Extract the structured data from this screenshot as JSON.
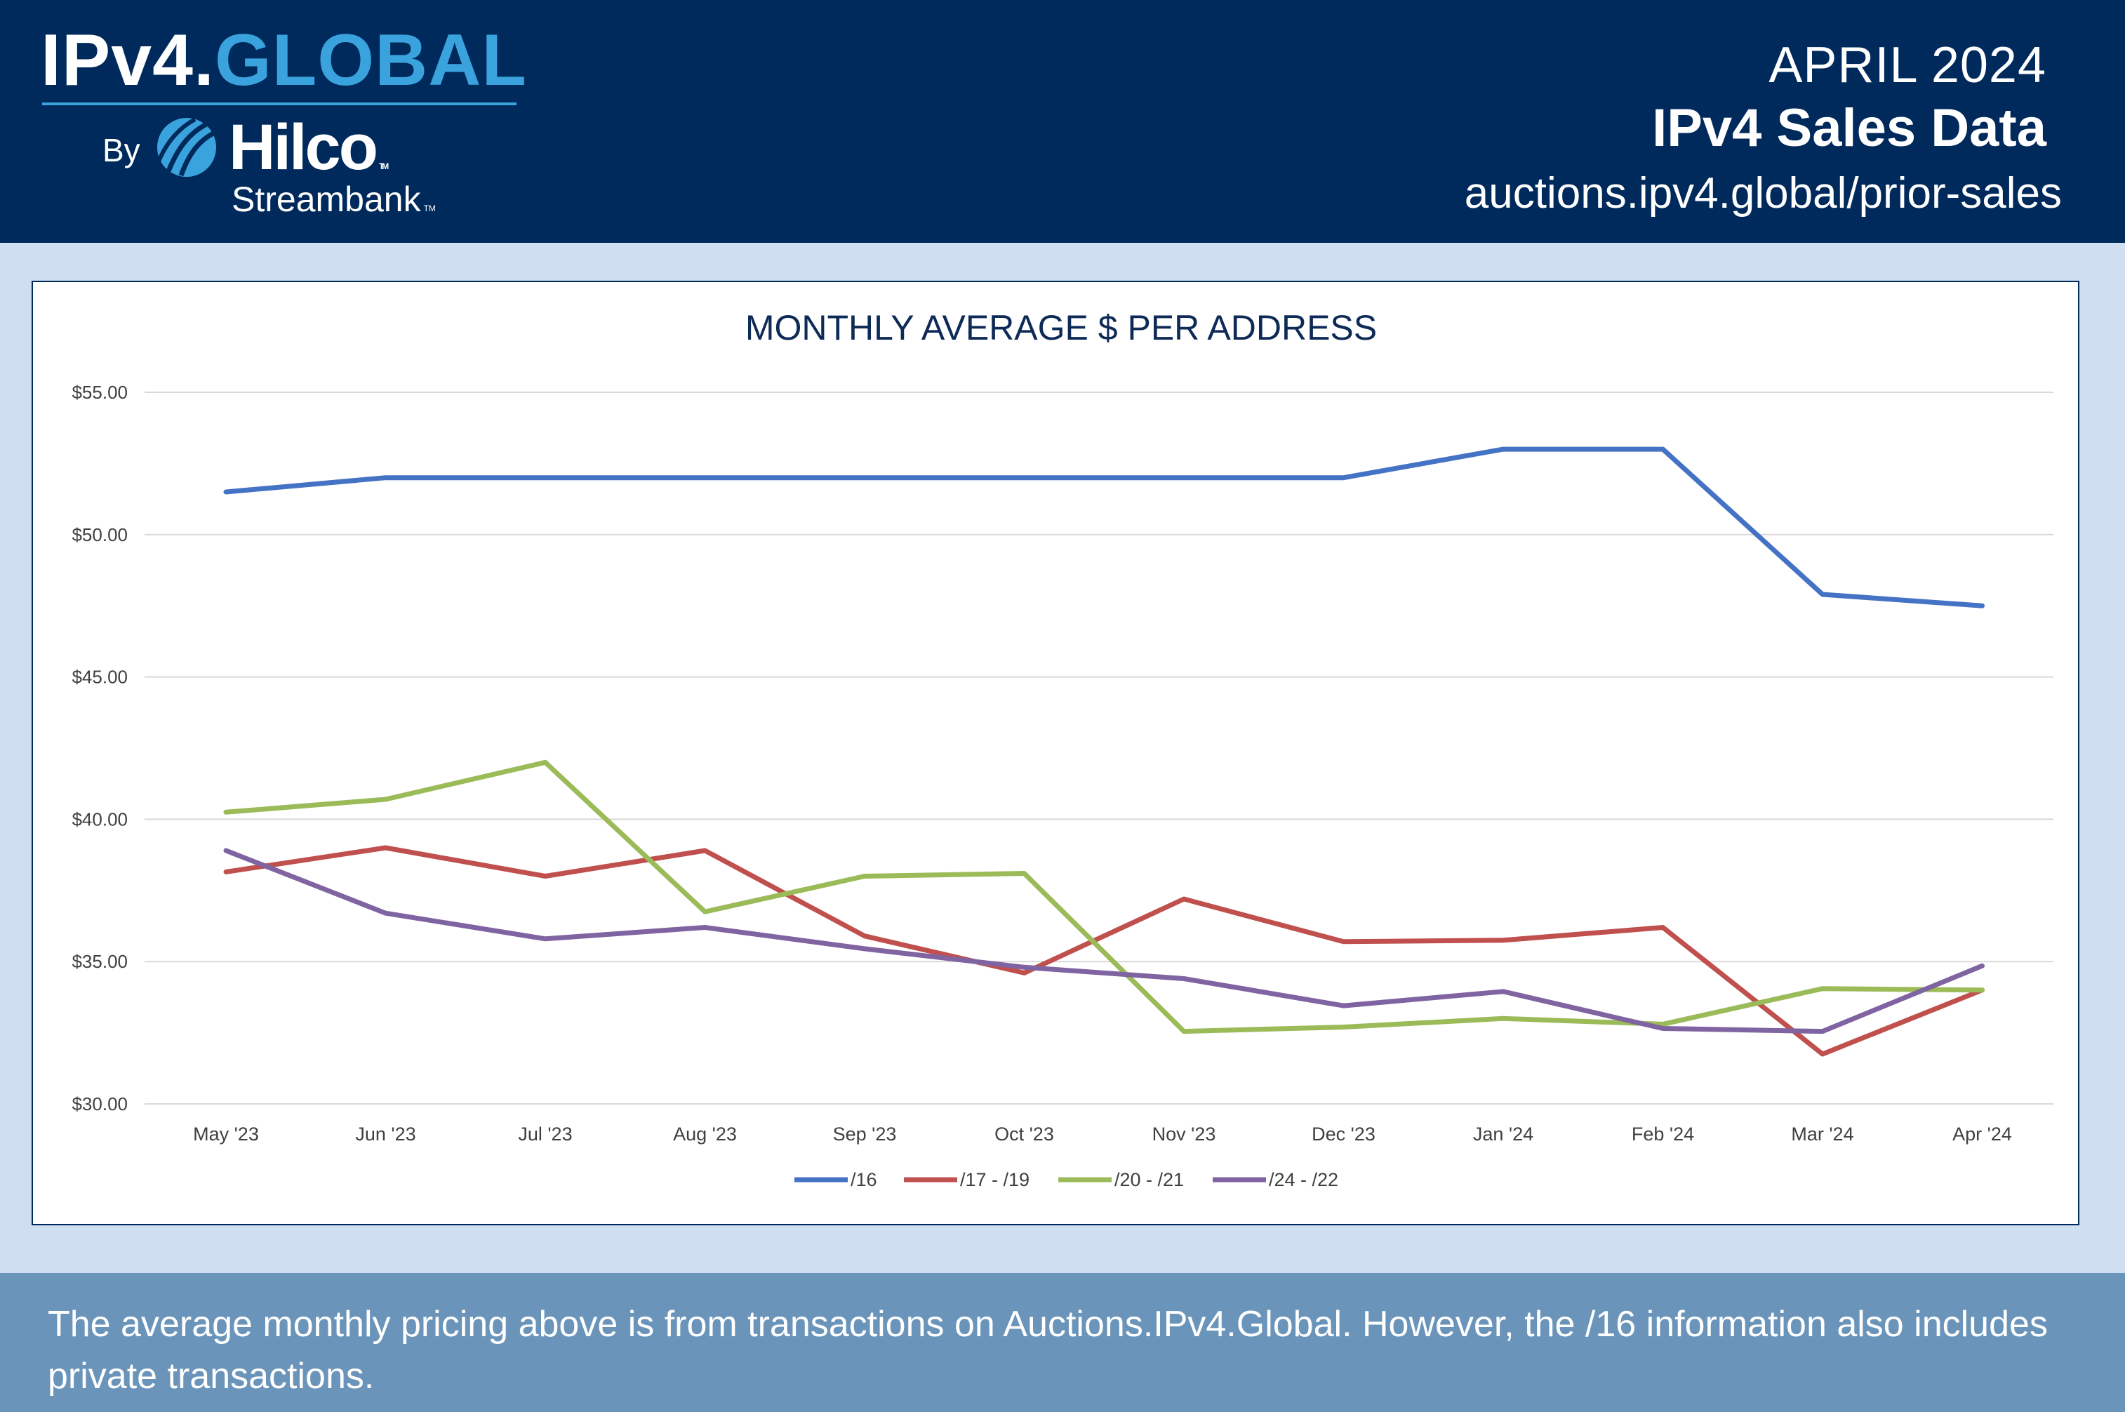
{
  "header": {
    "brand_part1": "IPv4.",
    "brand_part2": "GLOBAL",
    "by_label": "By",
    "hilco": "Hilco",
    "streambank": "Streambank",
    "tm": "TM",
    "month": "APRIL 2024",
    "title": "IPv4 Sales Data",
    "url": "auctions.ipv4.global/prior-sales"
  },
  "colors": {
    "header_bg": "#002a5c",
    "brand_accent": "#3aa3de",
    "page_bg": "#cfdef0",
    "footer_bg": "#6a94b9"
  },
  "chart_data": {
    "type": "line",
    "title": "MONTHLY AVERAGE $ PER ADDRESS",
    "xlabel": "",
    "ylabel": "",
    "ylim": [
      30,
      55
    ],
    "y_ticks": [
      30,
      35,
      40,
      45,
      50,
      55
    ],
    "y_tick_labels": [
      "$30.00",
      "$35.00",
      "$40.00",
      "$45.00",
      "$50.00",
      "$55.00"
    ],
    "grid": true,
    "legend_position": "bottom",
    "categories": [
      "May '23",
      "Jun '23",
      "Jul '23",
      "Aug '23",
      "Sep '23",
      "Oct '23",
      "Nov '23",
      "Dec '23",
      "Jan '24",
      "Feb '24",
      "Mar '24",
      "Apr '24"
    ],
    "series": [
      {
        "name": "/16",
        "color": "#4472c4",
        "values": [
          51.5,
          52.0,
          52.0,
          52.0,
          52.0,
          52.0,
          52.0,
          52.0,
          53.0,
          53.0,
          47.9,
          47.5
        ]
      },
      {
        "name": "/17 - /19",
        "color": "#c0504d",
        "values": [
          38.15,
          39.0,
          38.0,
          38.9,
          35.9,
          34.6,
          37.2,
          35.7,
          35.75,
          36.2,
          31.75,
          34.0
        ]
      },
      {
        "name": "/20 - /21",
        "color": "#9bbb59",
        "values": [
          40.25,
          40.7,
          42.0,
          36.75,
          38.0,
          38.1,
          32.55,
          32.7,
          33.0,
          32.8,
          34.05,
          34.0
        ]
      },
      {
        "name": "/24 - /22",
        "color": "#8064a2",
        "values": [
          38.9,
          36.7,
          35.8,
          36.2,
          35.45,
          34.8,
          34.4,
          33.45,
          33.95,
          32.65,
          32.55,
          34.85
        ]
      }
    ]
  },
  "footer": {
    "text": "The average monthly pricing above is from transactions on Auctions.IPv4.Global. However, the /16 information also includes private transactions."
  }
}
